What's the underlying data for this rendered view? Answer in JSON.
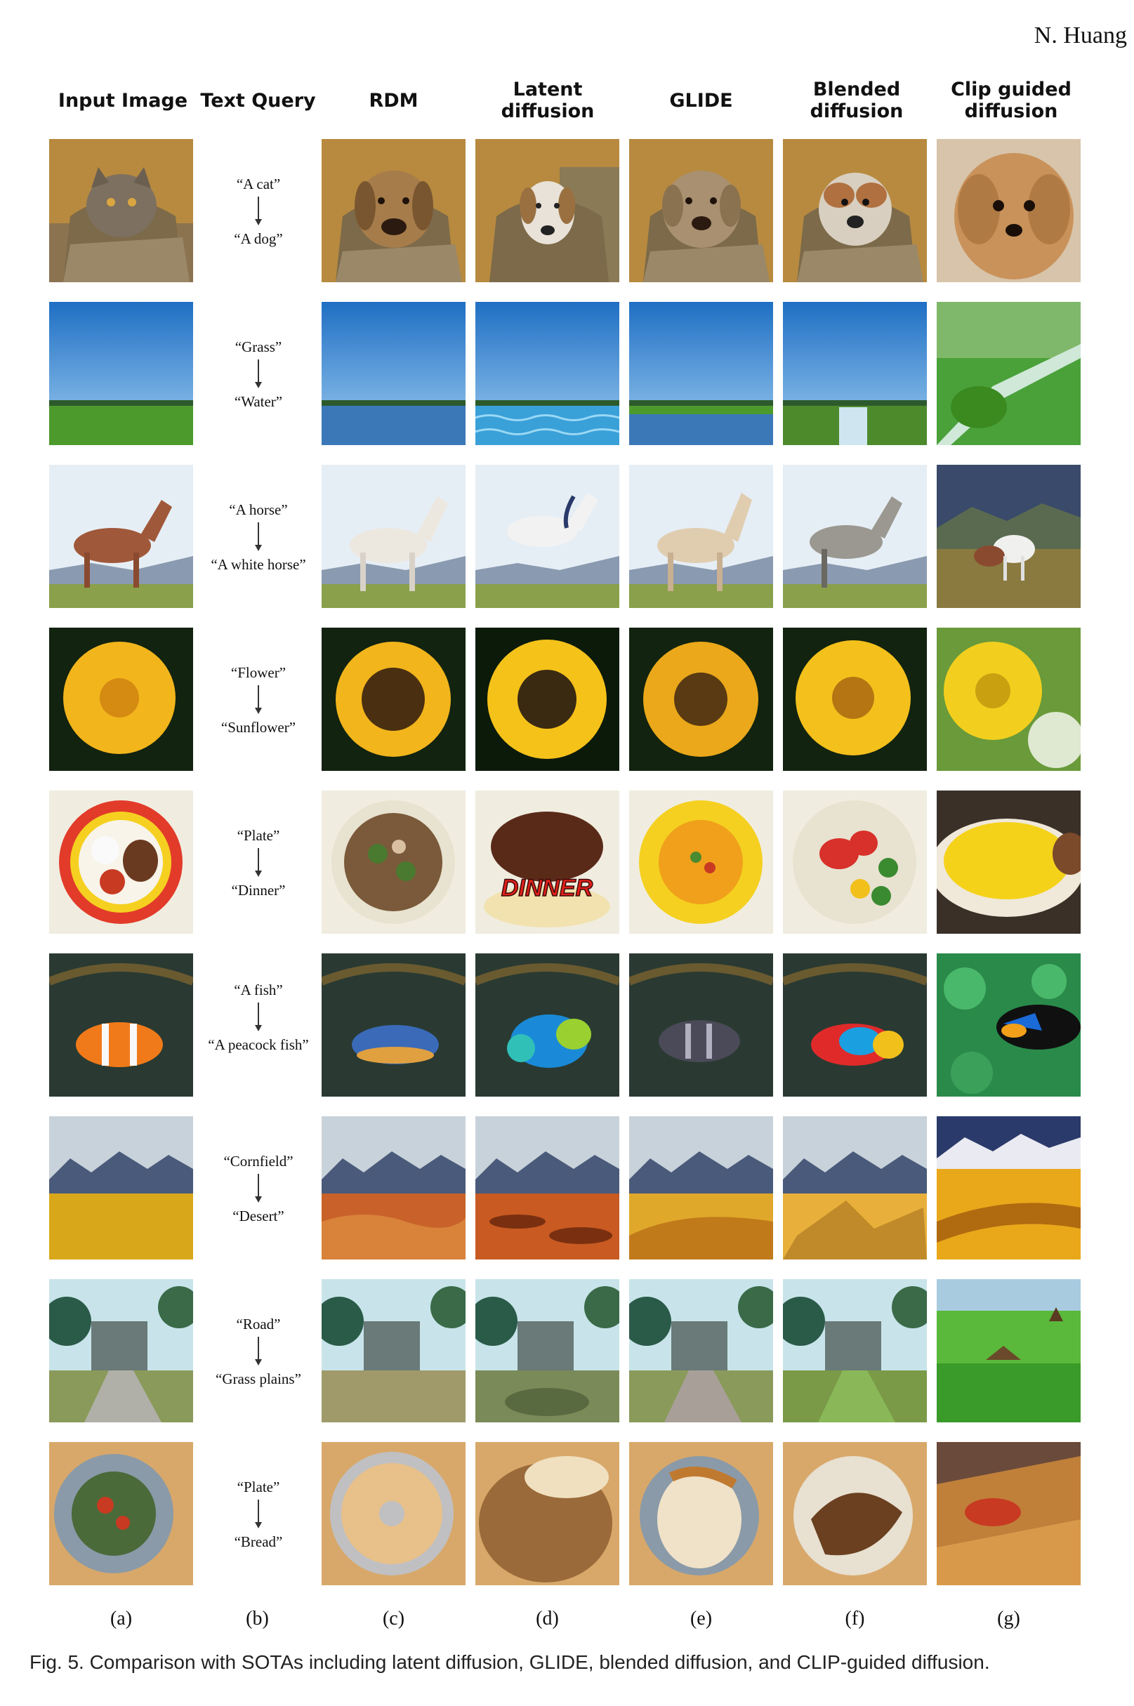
{
  "header": {
    "author": "N. Huang"
  },
  "columns": [
    {
      "label": "Input Image"
    },
    {
      "label": "Text Query"
    },
    {
      "label": "RDM"
    },
    {
      "label": "Latent diffusion"
    },
    {
      "label": "GLIDE"
    },
    {
      "label": "Blended diffusion"
    },
    {
      "label": "Clip guided diffusion"
    }
  ],
  "rows": [
    {
      "source": "“A cat”",
      "target": "“A dog”"
    },
    {
      "source": "“Grass”",
      "target": "“Water”"
    },
    {
      "source": "“A horse”",
      "target": "“A white horse”"
    },
    {
      "source": "“Flower”",
      "target": "“Sunflower”"
    },
    {
      "source": "“Plate”",
      "target": "“Dinner”"
    },
    {
      "source": "“A fish”",
      "target": "“A peacock fish”"
    },
    {
      "source": "“Cornfield”",
      "target": "“Desert”"
    },
    {
      "source": "“Road”",
      "target": "“Grass plains”"
    },
    {
      "source": "“Plate”",
      "target": "“Bread”"
    }
  ],
  "column_letters": [
    "(a)",
    "(b)",
    "(c)",
    "(d)",
    "(e)",
    "(f)",
    "(g)"
  ],
  "image_text": {
    "dinner_sign": "DINNER"
  },
  "caption": "Fig. 5.  Comparison with SOTAs including latent diffusion, GLIDE, blended diffusion, and CLIP-guided diffusion."
}
